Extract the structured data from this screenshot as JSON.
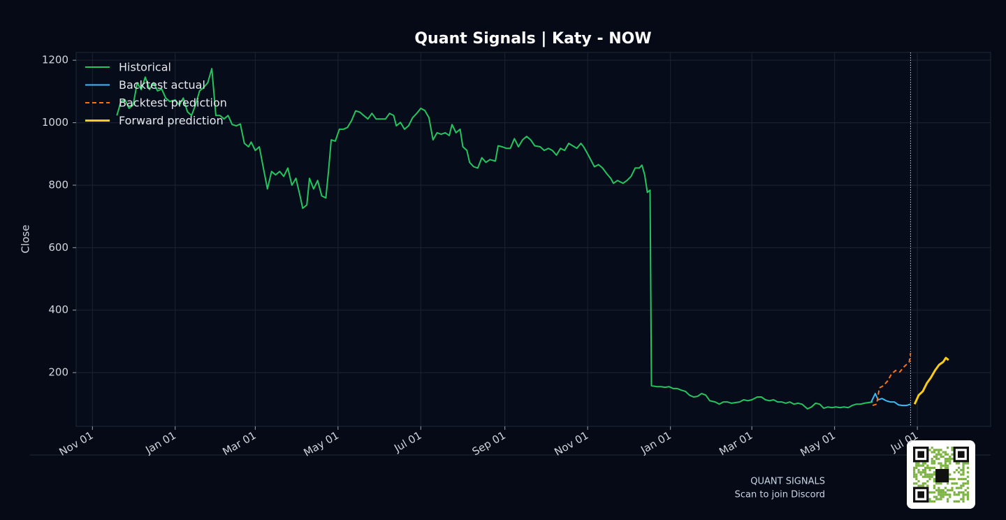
{
  "chart_data": {
    "type": "line",
    "title": "Quant Signals | Katy - NOW",
    "ylabel": "Close",
    "xlim": [
      -12,
      662
    ],
    "ylim": [
      28,
      1225
    ],
    "xticks": [
      {
        "value": 0,
        "label": "Nov 01"
      },
      {
        "value": 61,
        "label": "Jan 01"
      },
      {
        "value": 120,
        "label": "Mar 01"
      },
      {
        "value": 181,
        "label": "May 01"
      },
      {
        "value": 242,
        "label": "Jul 01"
      },
      {
        "value": 304,
        "label": "Sep 01"
      },
      {
        "value": 365,
        "label": "Nov 01"
      },
      {
        "value": 426,
        "label": "Jan 01"
      },
      {
        "value": 486,
        "label": "Mar 01"
      },
      {
        "value": 547,
        "label": "May 01"
      },
      {
        "value": 608,
        "label": "Jul 01"
      }
    ],
    "yticks": [
      200,
      400,
      600,
      800,
      1000,
      1200
    ],
    "grid": true,
    "legend": "upper left",
    "vline_x": 603,
    "series": [
      {
        "name": "Historical",
        "color": "#22c55e",
        "width": 2,
        "dash": false,
        "x": [
          18,
          21,
          24,
          27,
          30,
          33,
          36,
          39,
          42,
          45,
          48,
          51,
          54,
          57,
          61,
          64,
          67,
          70,
          73,
          76,
          79,
          82,
          85,
          88,
          91,
          94,
          97,
          100,
          103,
          106,
          109,
          112,
          115,
          117,
          120,
          123,
          126,
          129,
          132,
          135,
          138,
          141,
          144,
          147,
          150,
          153,
          155,
          158,
          160,
          163,
          166,
          169,
          172,
          174,
          176,
          179,
          182,
          185,
          188,
          191,
          194,
          197,
          200,
          203,
          206,
          209,
          213,
          216,
          219,
          222,
          224,
          227,
          230,
          233,
          236,
          239,
          242,
          245,
          248,
          251,
          254,
          257,
          260,
          263,
          265,
          268,
          271,
          273,
          276,
          278,
          281,
          284,
          287,
          290,
          293,
          297,
          299,
          302,
          305,
          308,
          311,
          314,
          317,
          320,
          323,
          326,
          330,
          333,
          336,
          339,
          342,
          345,
          348,
          351,
          354,
          357,
          360,
          362,
          365,
          370,
          373,
          376,
          379,
          382,
          384,
          387,
          391,
          394,
          397,
          400,
          403,
          405,
          407,
          409,
          411,
          412,
          416,
          419,
          422,
          425,
          428,
          431,
          434,
          437,
          440,
          443,
          446,
          449,
          452,
          455,
          459,
          462,
          465,
          468,
          471,
          474,
          477,
          480,
          483,
          486,
          490,
          493,
          496,
          499,
          502,
          505,
          508,
          511,
          514,
          517,
          520,
          523,
          527,
          530,
          533,
          536,
          539,
          542,
          545,
          548,
          551,
          554,
          557,
          560,
          563,
          566,
          569,
          572,
          575
        ],
        "values": [
          1023,
          1068,
          1073,
          1046,
          1057,
          1128,
          1106,
          1146,
          1106,
          1128,
          1102,
          1108,
          1079,
          1068,
          1073,
          1057,
          1079,
          1035,
          1023,
          1057,
          1102,
          1113,
          1128,
          1173,
          1023,
          1023,
          1012,
          1023,
          994,
          990,
          996,
          934,
          923,
          938,
          911,
          923,
          855,
          788,
          844,
          833,
          844,
          828,
          855,
          800,
          822,
          766,
          726,
          737,
          822,
          788,
          815,
          766,
          759,
          844,
          945,
          941,
          979,
          979,
          985,
          1007,
          1038,
          1034,
          1023,
          1012,
          1030,
          1012,
          1012,
          1012,
          1030,
          1023,
          990,
          1001,
          979,
          990,
          1016,
          1030,
          1046,
          1039,
          1016,
          945,
          968,
          963,
          968,
          959,
          994,
          968,
          979,
          923,
          911,
          873,
          859,
          855,
          888,
          873,
          882,
          877,
          926,
          923,
          918,
          918,
          949,
          923,
          945,
          956,
          945,
          926,
          923,
          911,
          918,
          911,
          896,
          918,
          911,
          934,
          926,
          918,
          934,
          923,
          900,
          859,
          866,
          855,
          837,
          822,
          806,
          815,
          806,
          815,
          828,
          855,
          855,
          864,
          833,
          777,
          784,
          158,
          155,
          155,
          153,
          155,
          149,
          149,
          144,
          140,
          128,
          122,
          124,
          133,
          128,
          110,
          106,
          99,
          106,
          106,
          102,
          104,
          106,
          113,
          110,
          113,
          122,
          122,
          113,
          110,
          113,
          106,
          106,
          102,
          106,
          99,
          102,
          99,
          84,
          90,
          102,
          99,
          86,
          90,
          88,
          90,
          88,
          90,
          88,
          95,
          99,
          99,
          102,
          104,
          106
        ]
      },
      {
        "name": "Backtest actual",
        "color": "#38bdf8",
        "width": 2,
        "dash": false,
        "x": [
          574,
          577,
          579,
          582,
          585,
          588,
          591,
          594,
          597,
          600,
          603
        ],
        "values": [
          106,
          133,
          113,
          117,
          110,
          106,
          106,
          97,
          95,
          95,
          99
        ]
      },
      {
        "name": "Backtest prediction",
        "color": "#f97316",
        "width": 2,
        "dash": true,
        "x": [
          575,
          578,
          580,
          583,
          586,
          589,
          592,
          595,
          598,
          602,
          603
        ],
        "values": [
          95,
          99,
          151,
          158,
          173,
          196,
          207,
          202,
          218,
          234,
          263
        ]
      },
      {
        "name": "Forward prediction",
        "color": "#facc15",
        "width": 3,
        "dash": false,
        "x": [
          606,
          609,
          612,
          615,
          618,
          621,
          624,
          627,
          629,
          631
        ],
        "values": [
          99,
          128,
          140,
          166,
          184,
          207,
          225,
          234,
          247,
          240
        ]
      }
    ]
  },
  "footer": {
    "brand": "QUANT SIGNALS",
    "cta": "Scan to join Discord"
  }
}
